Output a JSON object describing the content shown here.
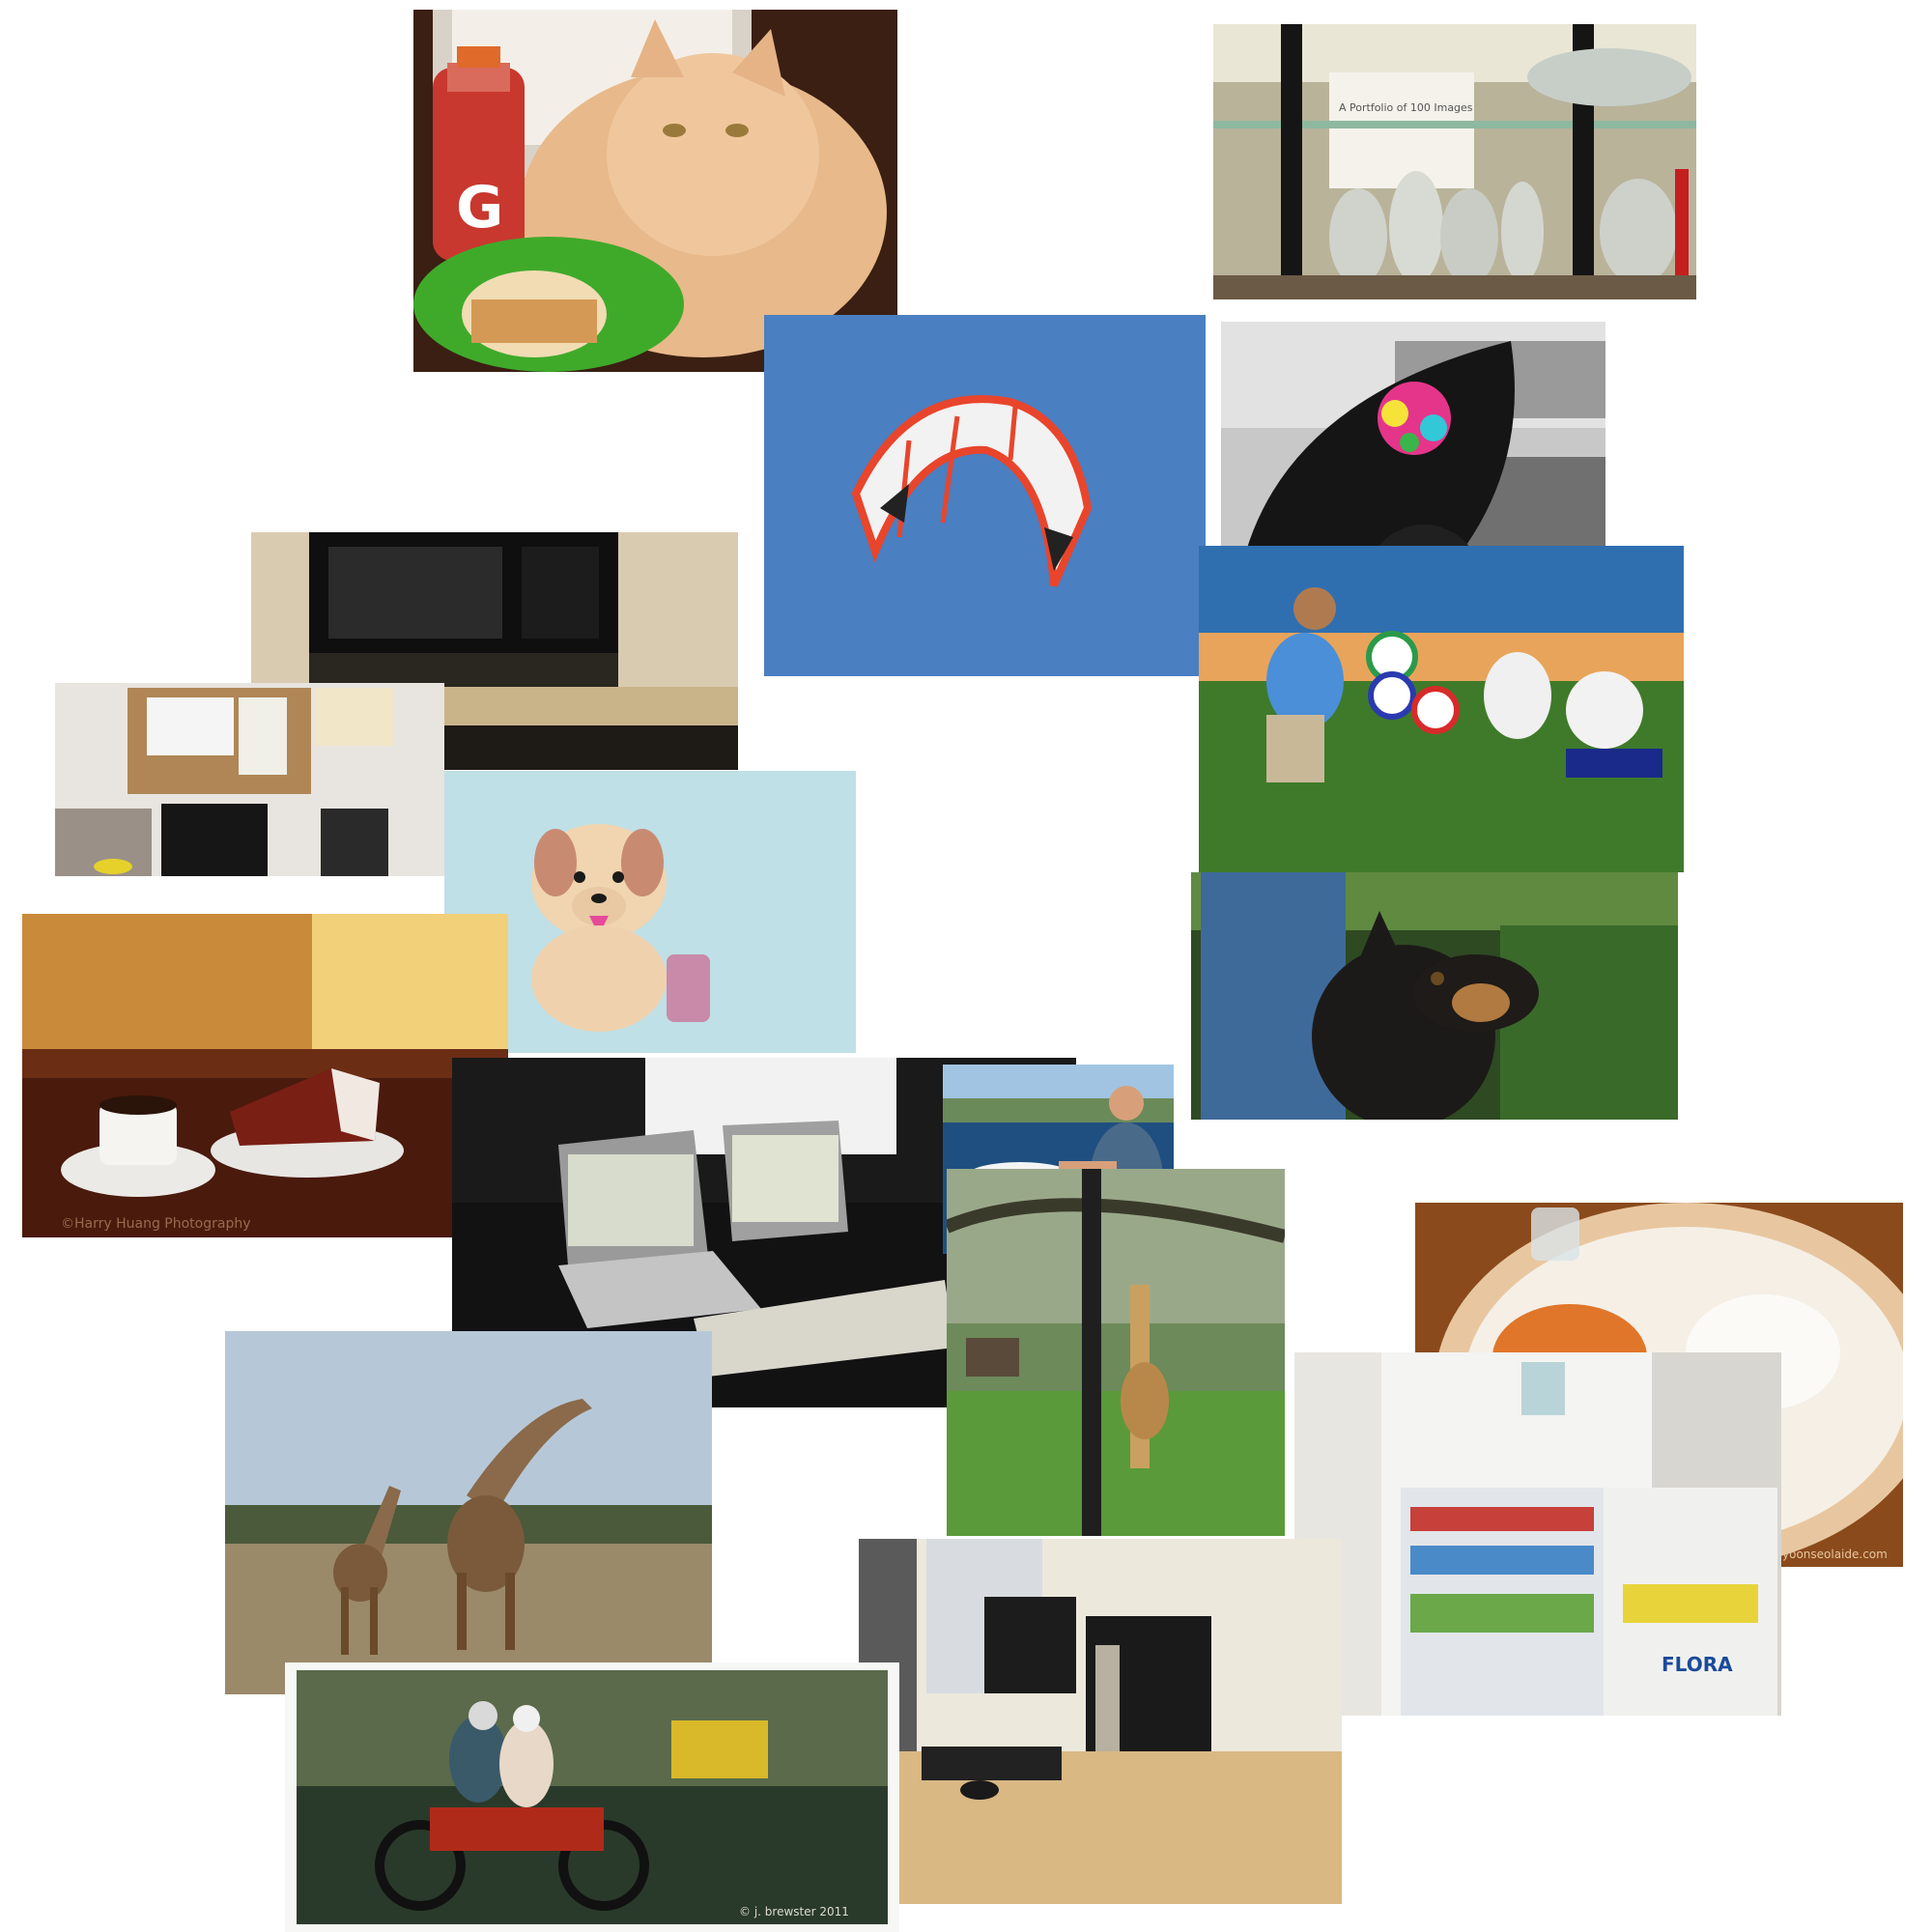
{
  "watermarks": {
    "bottle_logo": "G",
    "gallery_sign_title": "A Portfolio of 100 Images",
    "cafe_credit": "©Harry Huang Photography",
    "motorcycle_credit": "© j. brewster 2011",
    "food_site": "yoonseolaide.com",
    "fridge_brand": "FLORA"
  },
  "icons": [
    "cat",
    "vases",
    "kite",
    "umbrella",
    "microwave",
    "office-desk",
    "toy-puppy",
    "coffee-cake",
    "group-frisbee",
    "dog",
    "laptops",
    "bird-feeding",
    "giraffe-tree",
    "food-plate",
    "fridge",
    "giraffes",
    "motorcycle",
    "computer-desk"
  ]
}
